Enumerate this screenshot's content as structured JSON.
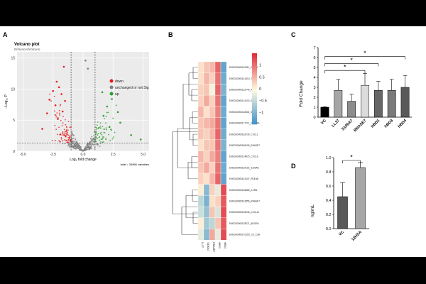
{
  "figure": {
    "panel_labels": [
      "A",
      "B",
      "C",
      "D"
    ]
  },
  "chart_data": [
    {
      "panel": "A",
      "type": "scatter",
      "title": "Volcano plot",
      "subtitle": "EnhancedVolcano",
      "xlabel": "Log₂ fold change",
      "ylabel": "−Log₁₀ P",
      "xlim": [
        -5.5,
        5.5
      ],
      "ylim": [
        0,
        16
      ],
      "xticks": [
        -5.0,
        -2.5,
        0.0,
        2.5,
        5.0
      ],
      "yticks": [
        0,
        5,
        10,
        15
      ],
      "fc_cutoff": 1,
      "p_cutoff_y": 1.3,
      "grid": true,
      "legend_placement": "top-right",
      "legend": [
        {
          "name": "down",
          "color": "#e41a1c"
        },
        {
          "name": "unchanged or not Sig",
          "color": "#7f7f7f"
        },
        {
          "name": "up",
          "color": "#2ca02c"
        }
      ],
      "caption": "total = 34986 variables",
      "highlighted_points": [
        {
          "x": -1.6,
          "y": 13.6,
          "color": "#e41a1c"
        },
        {
          "x": 0.2,
          "y": 14.6,
          "color": "#7f7f7f"
        },
        {
          "x": 0.4,
          "y": 13.3,
          "color": "#7f7f7f"
        },
        {
          "x": -2.2,
          "y": 11.2,
          "color": "#e41a1c"
        },
        {
          "x": -2.0,
          "y": 10.3,
          "color": "#e41a1c"
        },
        {
          "x": -2.5,
          "y": 9.7,
          "color": "#e41a1c"
        },
        {
          "x": -1.8,
          "y": 9.2,
          "color": "#e41a1c"
        },
        {
          "x": -2.8,
          "y": 8.3,
          "color": "#e41a1c"
        },
        {
          "x": -1.5,
          "y": 8.1,
          "color": "#e41a1c"
        },
        {
          "x": -2.3,
          "y": 7.4,
          "color": "#e41a1c"
        },
        {
          "x": -3.0,
          "y": 6.1,
          "color": "#e41a1c"
        },
        {
          "x": -1.7,
          "y": 6.4,
          "color": "#e41a1c"
        },
        {
          "x": -2.1,
          "y": 5.2,
          "color": "#e41a1c"
        },
        {
          "x": -3.4,
          "y": 3.6,
          "color": "#e41a1c"
        },
        {
          "x": -1.9,
          "y": 2.7,
          "color": "#e41a1c"
        },
        {
          "x": 1.6,
          "y": 9.5,
          "color": "#2ca02c"
        },
        {
          "x": 2.4,
          "y": 8.4,
          "color": "#2ca02c"
        },
        {
          "x": 2.0,
          "y": 7.2,
          "color": "#2ca02c"
        },
        {
          "x": 2.9,
          "y": 6.3,
          "color": "#2ca02c"
        },
        {
          "x": 1.7,
          "y": 5.7,
          "color": "#2ca02c"
        },
        {
          "x": 3.1,
          "y": 4.6,
          "color": "#2ca02c"
        },
        {
          "x": 2.2,
          "y": 3.9,
          "color": "#2ca02c"
        },
        {
          "x": 4.0,
          "y": 2.6,
          "color": "#2ca02c"
        },
        {
          "x": 4.8,
          "y": 1.9,
          "color": "#2ca02c"
        }
      ]
    },
    {
      "panel": "B",
      "type": "heatmap",
      "columns": [
        "LL37",
        "S100A7",
        "RNASE7",
        "hBD1",
        "hBD4"
      ],
      "rows": [
        "ENSG00000110811_CXCL2",
        "ENSG00000141510_TP53",
        "ENSG00000132740_APP",
        "ENSG00000124102_SLPI",
        "ENSG00000118632_SAA1",
        "ENSG00000171711_DEFB4A",
        "ENSG00000163739_CXCL1",
        "ENSG00000186105_RNASE7",
        "ENSG00000124875_CXCL6",
        "ENSG00000119102_S100A8",
        "ENSG00000143107_PDE4B",
        "ENSG00000136689_IL1RN",
        "ENSG00000143556_RNASE7",
        "ENSG00000163235_CXCL11",
        "ENSG00000128271_ADORA",
        "ENSG00000170153_CD_C3B"
      ],
      "values": [
        [
          0.2,
          0.4,
          0.5,
          1.1,
          -1.2
        ],
        [
          0.2,
          0.5,
          0.3,
          1.0,
          -1.1
        ],
        [
          0.3,
          0.4,
          -0.1,
          1.1,
          -1.0
        ],
        [
          0.3,
          0.6,
          0.3,
          1.0,
          -1.2
        ],
        [
          0.5,
          0.2,
          0.4,
          0.9,
          -1.1
        ],
        [
          0.4,
          0.5,
          0.6,
          1.0,
          -1.2
        ],
        [
          0.4,
          0.3,
          0.5,
          1.1,
          -1.1
        ],
        [
          0.2,
          0.4,
          0.4,
          1.0,
          -1.0
        ],
        [
          0.5,
          0.3,
          0.6,
          0.9,
          -1.2
        ],
        [
          0.4,
          0.6,
          0.3,
          1.0,
          -1.1
        ],
        [
          0.3,
          0.2,
          0.5,
          1.1,
          -1.2
        ],
        [
          0.1,
          -0.9,
          0.3,
          -0.2,
          1.3
        ],
        [
          -0.5,
          -1.0,
          0.2,
          0.3,
          1.2
        ],
        [
          -0.4,
          -0.8,
          0.4,
          -0.3,
          1.3
        ],
        [
          0.1,
          -0.7,
          -0.5,
          0.4,
          1.2
        ],
        [
          -0.2,
          -0.9,
          0.6,
          -0.2,
          1.3
        ]
      ],
      "color_scale": {
        "min": -1.5,
        "max": 1.5,
        "low": "#3a8ec8",
        "mid": "#fffbe0",
        "high": "#e0303c"
      },
      "legend_ticks": [
        1,
        0.5,
        0,
        -0.5,
        -1
      ]
    },
    {
      "panel": "C",
      "type": "bar",
      "categories": [
        "VC",
        "LL37",
        "S100A7",
        "RNASE7",
        "hBD1",
        "hBD3",
        "hBD4"
      ],
      "values": [
        1.0,
        2.7,
        1.6,
        3.2,
        2.7,
        2.7,
        3.0
      ],
      "errors": [
        0.05,
        1.1,
        0.7,
        1.2,
        0.9,
        1.1,
        1.2
      ],
      "colors": [
        "#000000",
        "#a6a6a6",
        "#8c8c8c",
        "#dcdcdc",
        "#666666",
        "#7a7a7a",
        "#595959"
      ],
      "ylabel": "Fold Change",
      "ylim": [
        0,
        7
      ],
      "yticks": [
        0,
        1,
        2,
        3,
        4,
        5,
        6,
        7
      ],
      "significance": [
        {
          "from": "VC",
          "to": "RNASE7",
          "label": "*"
        },
        {
          "from": "VC",
          "to": "hBD1",
          "label": "*"
        },
        {
          "from": "VC",
          "to": "hBD4",
          "label": "*"
        }
      ]
    },
    {
      "panel": "D",
      "type": "bar",
      "categories": [
        "VC",
        "12HSA"
      ],
      "values": [
        0.45,
        0.86
      ],
      "errors": [
        0.2,
        0.07
      ],
      "colors": [
        "#595959",
        "#a6a6a6"
      ],
      "ylabel": "ng/mL",
      "ylim": [
        0,
        1.0
      ],
      "yticks": [
        0.0,
        0.2,
        0.4,
        0.6,
        0.8,
        1.0
      ],
      "significance": [
        {
          "from": "VC",
          "to": "12HSA",
          "label": "*"
        }
      ]
    }
  ]
}
